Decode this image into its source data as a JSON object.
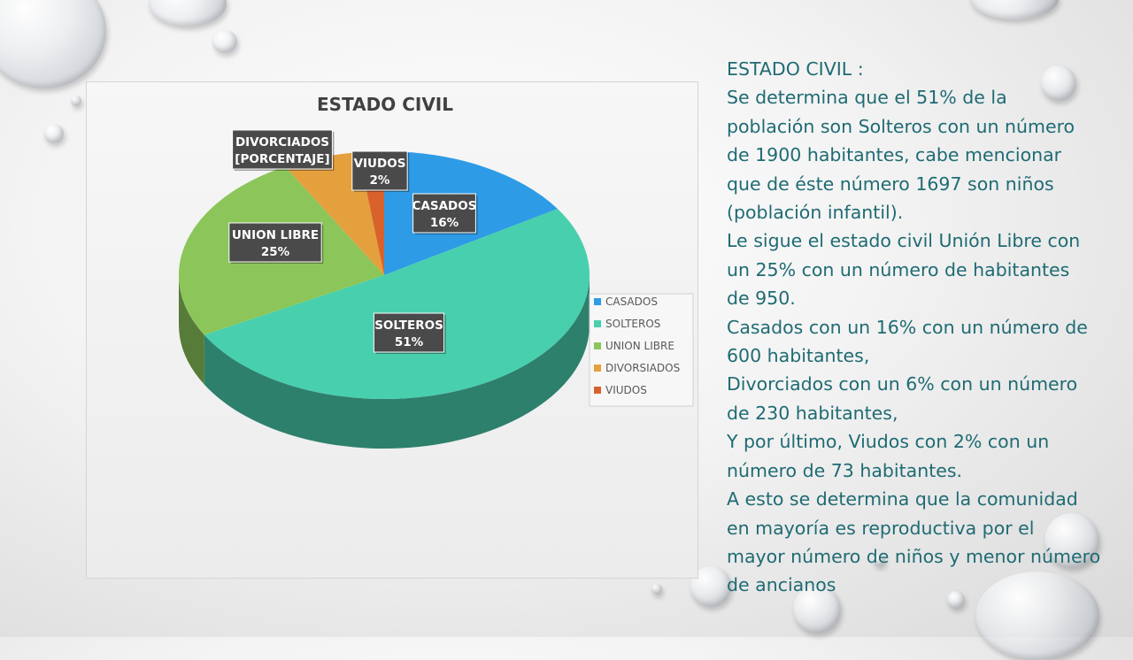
{
  "slide": {
    "text_lines": [
      "ESTADO CIVIL :",
      "Se determina que el 51% de la",
      "población son Solteros con un número",
      "de 1900 habitantes, cabe mencionar",
      "que de éste número 1697 son niños",
      "(población infantil).",
      "Le sigue el estado civil Unión Libre con",
      "un 25% con un número de habitantes",
      "de 950.",
      "Casados con un 16% con un número de",
      "600 habitantes,",
      "Divorciados con un 6% con un número",
      "de 230 habitantes,",
      "Y por último, Viudos con 2% con un",
      "número de 73 habitantes.",
      "A esto se determina que la comunidad",
      "en mayoría es reproductiva por el",
      "mayor número de niños y menor número",
      "de ancianos"
    ],
    "text_color": "#1f6b73"
  },
  "chart_data": {
    "type": "pie",
    "title": "ESTADO CIVIL",
    "slices": [
      {
        "category": "CASADOS",
        "value": 16,
        "data_label": [
          "CASADOS",
          "16%"
        ],
        "color": "#2e9be6"
      },
      {
        "category": "SOLTEROS",
        "value": 51,
        "data_label": [
          "SOLTEROS",
          "51%"
        ],
        "color": "#48cfae"
      },
      {
        "category": "UNION LIBRE",
        "value": 25,
        "data_label": [
          "UNION LIBRE",
          "25%"
        ],
        "color": "#8cc65a"
      },
      {
        "category": "DIVORSIADOS",
        "value": 6,
        "data_label": [
          "DIVORCIADOS",
          "[PORCENTAJE]"
        ],
        "color": "#e4a03d"
      },
      {
        "category": "VIUDOS",
        "value": 2,
        "data_label": [
          "VIUDOS",
          "2%"
        ],
        "color": "#d9622c"
      }
    ],
    "legend": {
      "placement": "right",
      "entries": [
        "CASADOS",
        "SOLTEROS",
        "UNION LIBRE",
        "DIVORSIADOS",
        "VIUDOS"
      ]
    },
    "three_d": true
  }
}
